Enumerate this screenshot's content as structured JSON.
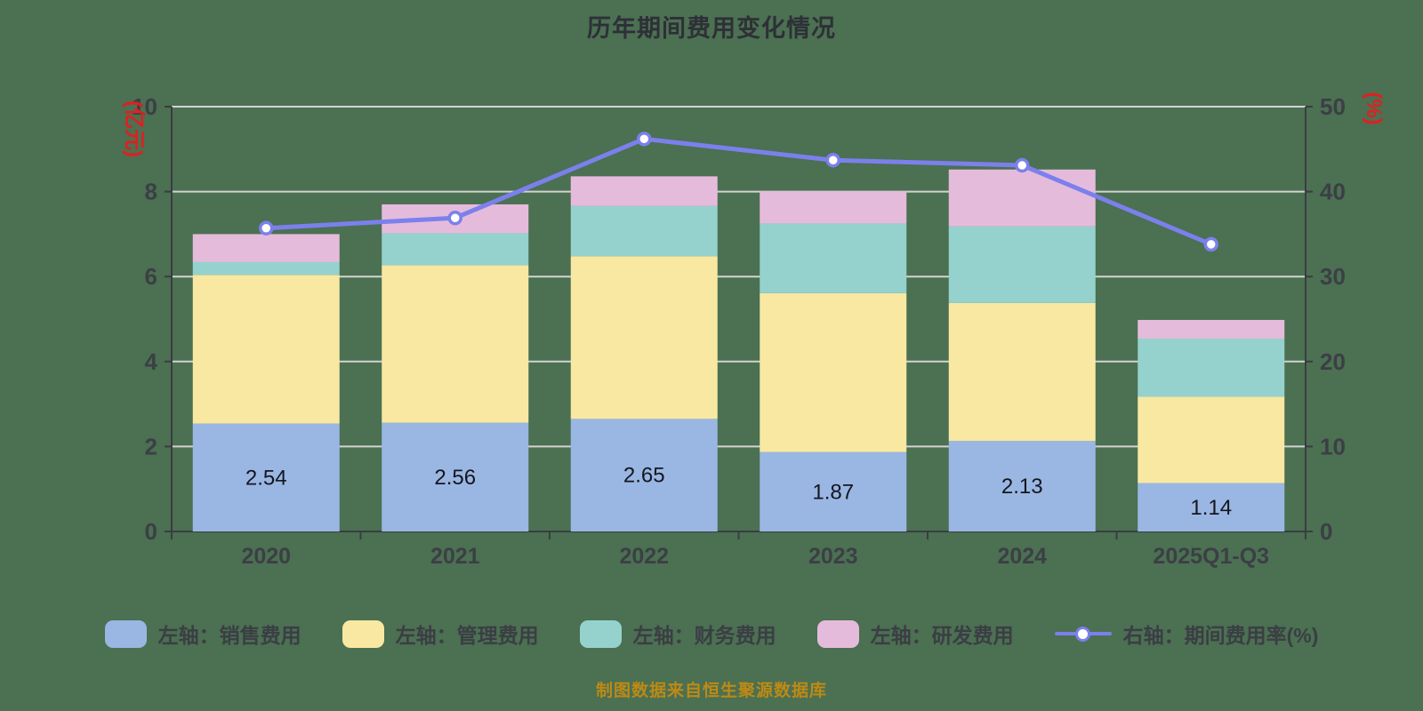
{
  "title": "历年期间费用变化情况",
  "footer": "制图数据来自恒生聚源数据库",
  "colors": {
    "background": "#4b7052",
    "title_text": "#2e3037",
    "axis_text": "#3c3f45",
    "unit_text": "#e01f1f",
    "grid_line": "#d2d4d2",
    "axis_line": "#3a3d42",
    "bar_label_text": "#15161f",
    "footer_text": "#bd8a15",
    "legend_text": "#3b3e44",
    "sales": "#9ab7e3",
    "admin": "#f8e8a2",
    "finance": "#95d2cd",
    "rnd": "#e5bbdc",
    "rate_line": "#7b80ec",
    "marker_fill": "#ffffff"
  },
  "chart_data": {
    "type": "bar",
    "title": "历年期间费用变化情况",
    "stacked": true,
    "grid": true,
    "legend_position": "bottom",
    "categories": [
      "2020",
      "2021",
      "2022",
      "2023",
      "2024",
      "2025Q1-Q3"
    ],
    "series": [
      {
        "name": "左轴：销售费用",
        "type": "bar",
        "axis": "left",
        "color_key": "sales",
        "values": [
          2.54,
          2.56,
          2.65,
          1.87,
          2.13,
          1.14
        ],
        "show_labels": true
      },
      {
        "name": "左轴：管理费用",
        "type": "bar",
        "axis": "left",
        "color_key": "admin",
        "values": [
          3.5,
          3.71,
          3.83,
          3.74,
          3.25,
          2.03
        ],
        "show_labels": false
      },
      {
        "name": "左轴：财务费用",
        "type": "bar",
        "axis": "left",
        "color_key": "finance",
        "values": [
          0.3,
          0.75,
          1.18,
          1.64,
          1.8,
          1.37
        ],
        "show_labels": false
      },
      {
        "name": "左轴：研发费用",
        "type": "bar",
        "axis": "left",
        "color_key": "rnd",
        "values": [
          0.66,
          0.68,
          0.7,
          0.76,
          1.34,
          0.44
        ],
        "show_labels": false
      },
      {
        "name": "右轴：期间费用率(%)",
        "type": "line",
        "axis": "right",
        "color_key": "rate_line",
        "values": [
          35.7,
          36.9,
          46.2,
          43.7,
          43.1,
          33.8
        ]
      }
    ],
    "left_axis": {
      "label": "(亿元)",
      "min": 0,
      "max": 10,
      "ticks": [
        0,
        2,
        4,
        6,
        8,
        10
      ]
    },
    "right_axis": {
      "label": "(%)",
      "min": 0,
      "max": 50,
      "ticks": [
        0,
        10,
        20,
        30,
        40,
        50
      ]
    }
  },
  "legend": {
    "items": [
      {
        "label": "左轴：销售费用",
        "color_key": "sales",
        "type": "bar"
      },
      {
        "label": "左轴：管理费用",
        "color_key": "admin",
        "type": "bar"
      },
      {
        "label": "左轴：财务费用",
        "color_key": "finance",
        "type": "bar"
      },
      {
        "label": "左轴：研发费用",
        "color_key": "rnd",
        "type": "bar"
      },
      {
        "label": "右轴：期间费用率(%)",
        "color_key": "rate_line",
        "type": "line"
      }
    ]
  }
}
